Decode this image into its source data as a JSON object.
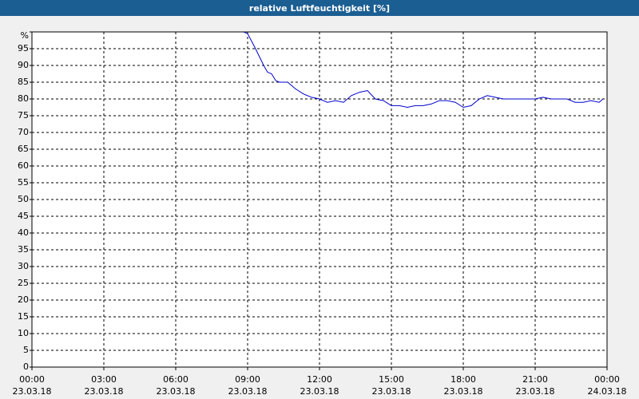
{
  "chart_data": {
    "type": "line",
    "title": "relative Luftfeuchtigkeit [%]",
    "x": [
      8.83,
      9.0,
      9.33,
      9.67,
      9.83,
      10.0,
      10.17,
      10.33,
      10.67,
      11.0,
      11.33,
      11.67,
      12.0,
      12.33,
      12.67,
      13.0,
      13.33,
      13.67,
      14.0,
      14.33,
      14.67,
      15.0,
      15.33,
      15.67,
      16.0,
      16.33,
      16.67,
      17.0,
      17.33,
      17.67,
      18.0,
      18.33,
      18.67,
      19.0,
      19.33,
      19.67,
      21.0,
      21.33,
      21.67,
      22.33,
      22.67,
      23.0,
      23.33,
      23.67,
      23.83
    ],
    "series": [
      {
        "color": "#0000cc",
        "values": [
          100,
          99.5,
          95,
          90,
          88,
          87.5,
          85.5,
          85,
          85,
          83,
          81.5,
          80.5,
          80,
          79,
          79.5,
          79,
          81,
          82,
          82.5,
          80,
          79.5,
          78,
          78,
          77.5,
          78,
          78,
          78.5,
          79.5,
          79.5,
          79,
          77.5,
          78,
          80,
          81,
          80.5,
          80,
          80,
          80.5,
          80,
          80,
          79,
          79,
          79.5,
          79,
          80
        ]
      }
    ],
    "xlim": [
      0,
      24
    ],
    "xticks": [
      {
        "value": 0,
        "label": [
          "00:00",
          "23.03.18"
        ]
      },
      {
        "value": 3,
        "label": [
          "03:00",
          "23.03.18"
        ]
      },
      {
        "value": 6,
        "label": [
          "06:00",
          "23.03.18"
        ]
      },
      {
        "value": 9,
        "label": [
          "09:00",
          "23.03.18"
        ]
      },
      {
        "value": 12,
        "label": [
          "12:00",
          "23.03.18"
        ]
      },
      {
        "value": 15,
        "label": [
          "15:00",
          "23.03.18"
        ]
      },
      {
        "value": 18,
        "label": [
          "18:00",
          "23.03.18"
        ]
      },
      {
        "value": 21,
        "label": [
          "21:00",
          "23.03.18"
        ]
      },
      {
        "value": 24,
        "label": [
          "00:00",
          "24.03.18"
        ]
      }
    ],
    "ylim": [
      0,
      100
    ],
    "yticks": [
      0,
      5,
      10,
      15,
      20,
      25,
      30,
      35,
      40,
      45,
      50,
      55,
      60,
      65,
      70,
      75,
      80,
      85,
      90,
      95,
      {
        "value": 100,
        "label": "%"
      }
    ],
    "grid": true
  }
}
